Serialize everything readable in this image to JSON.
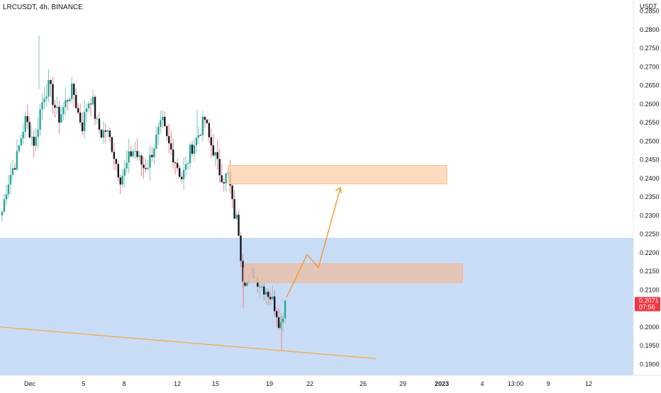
{
  "header": {
    "symbol_title": "LRCUSDT, 4h, BINANCE"
  },
  "price_axis": {
    "currency_label": "USDT",
    "ticks": [
      "0.2850",
      "0.2800",
      "0.2750",
      "0.2700",
      "0.2650",
      "0.2600",
      "0.2550",
      "0.2500",
      "0.2450",
      "0.2400",
      "0.2350",
      "0.2300",
      "0.2250",
      "0.2200",
      "0.2150",
      "0.2100",
      "0.2050",
      "0.2000",
      "0.1950",
      "0.1900"
    ],
    "last_price_label": "0.2071",
    "countdown_label": "07:56",
    "last_price_color": "#f23645"
  },
  "time_axis": {
    "ticks": [
      {
        "label": "Dec",
        "bold": false
      },
      {
        "label": "5",
        "bold": false
      },
      {
        "label": "8",
        "bold": false
      },
      {
        "label": "12",
        "bold": false
      },
      {
        "label": "15",
        "bold": false
      },
      {
        "label": "19",
        "bold": false
      },
      {
        "label": "22",
        "bold": false
      },
      {
        "label": "26",
        "bold": false
      },
      {
        "label": "29",
        "bold": false
      },
      {
        "label": "2023",
        "bold": true
      },
      {
        "label": "4",
        "bold": false
      },
      {
        "label": "13:00",
        "bold": false
      },
      {
        "label": "9",
        "bold": false
      },
      {
        "label": "12",
        "bold": false
      }
    ]
  },
  "colors": {
    "up": "#26a69a",
    "down": "#131722",
    "wick_up": "#7fc8c1",
    "wick_down": "#f08080",
    "support_zone": "#c9dcf5",
    "resistance_box": "#fbd5b3",
    "demand_box": "#e6c2b1",
    "projection": "#f5962a",
    "trendline": "#f5a742"
  },
  "chart_data": {
    "type": "candlestick",
    "symbol": "LRCUSDT",
    "interval": "4h",
    "exchange": "BINANCE",
    "ylim": [
      0.187,
      0.288
    ],
    "candles_close_path": [
      0.231,
      0.238,
      0.242,
      0.245,
      0.251,
      0.256,
      0.252,
      0.249,
      0.258,
      0.263,
      0.265,
      0.26,
      0.256,
      0.259,
      0.262,
      0.264,
      0.258,
      0.254,
      0.26,
      0.262,
      0.255,
      0.252,
      0.253,
      0.25,
      0.245,
      0.24,
      0.242,
      0.246,
      0.248,
      0.245,
      0.243,
      0.244,
      0.248,
      0.252,
      0.255,
      0.25,
      0.247,
      0.244,
      0.24,
      0.243,
      0.248,
      0.25,
      0.253,
      0.256,
      0.25,
      0.247,
      0.242,
      0.24,
      0.241,
      0.231,
      0.228,
      0.214,
      0.212,
      0.215,
      0.213,
      0.211,
      0.21,
      0.208,
      0.205,
      0.2,
      0.2071
    ],
    "annotations": [
      {
        "type": "rectangle",
        "name": "resistance-zone",
        "price_top": 0.2435,
        "price_bottom": 0.2385,
        "from": "16",
        "to": "27"
      },
      {
        "type": "rectangle",
        "name": "demand-zone",
        "price_top": 0.217,
        "price_bottom": 0.212,
        "from": "17",
        "to": "28"
      },
      {
        "type": "rectangle",
        "name": "support-area",
        "price_top": 0.224,
        "price_bottom": 0.187
      },
      {
        "type": "polyline",
        "name": "projected-path",
        "points": [
          [
            0.208
          ],
          [
            0.2195
          ],
          [
            0.216
          ],
          [
            0.2375
          ]
        ]
      },
      {
        "type": "line",
        "name": "trendline",
        "from_price": 0.2,
        "to_price": 0.1915
      }
    ]
  }
}
